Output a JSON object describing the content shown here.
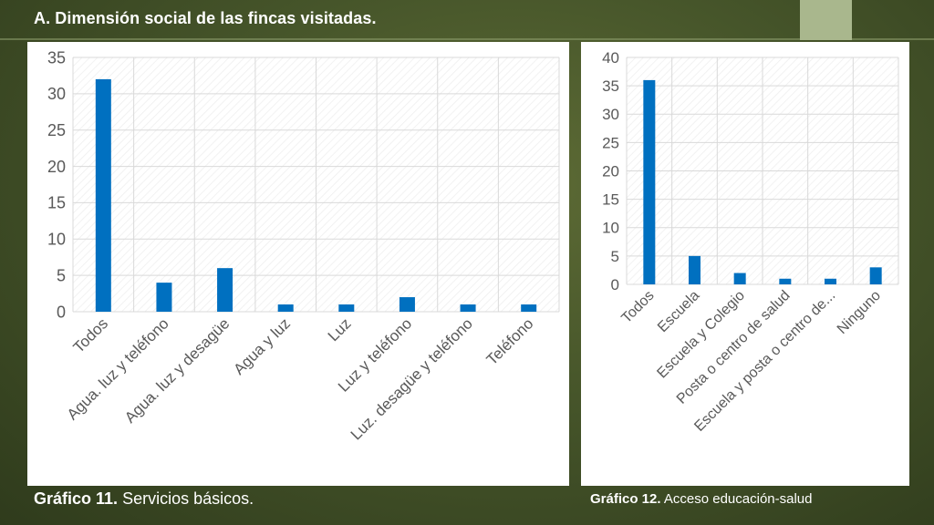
{
  "slide": {
    "title": "A. Dimensión social de las fincas visitadas."
  },
  "captions": {
    "left_bold": "Gráfico 11.",
    "left_text": " Servicios básicos.",
    "right_bold": "Gráfico 12.",
    "right_text": " Acceso educación-salud"
  },
  "colors": {
    "bar": "#0070C0",
    "gridline": "#d9d9d9",
    "axis_text": "#595959",
    "background": "#46552a",
    "panel": "#ffffff"
  },
  "chart_data": [
    {
      "type": "bar",
      "title": "",
      "xlabel": "",
      "ylabel": "",
      "categories": [
        "Todos",
        "Agua. luz y teléfono",
        "Agua. luz y desagüe",
        "Agua y luz",
        "Luz",
        "Luz y teléfono",
        "Luz. desagüe y teléfono",
        "Teléfono"
      ],
      "values": [
        32,
        4,
        6,
        1,
        1,
        2,
        1,
        1
      ],
      "ylim": [
        0,
        35
      ],
      "yticks": [
        0,
        5,
        10,
        15,
        20,
        25,
        30,
        35
      ],
      "grid": true,
      "legend": "none"
    },
    {
      "type": "bar",
      "title": "",
      "xlabel": "",
      "ylabel": "",
      "categories": [
        "Todos",
        "Escuela",
        "Escuela y Colegio",
        "Posta o centro de salud",
        "Escuela y posta o centro de...",
        "Ninguno"
      ],
      "values": [
        36,
        5,
        2,
        1,
        1,
        3
      ],
      "ylim": [
        0,
        40
      ],
      "yticks": [
        0,
        5,
        10,
        15,
        20,
        25,
        30,
        35,
        40
      ],
      "grid": true,
      "legend": "none"
    }
  ]
}
